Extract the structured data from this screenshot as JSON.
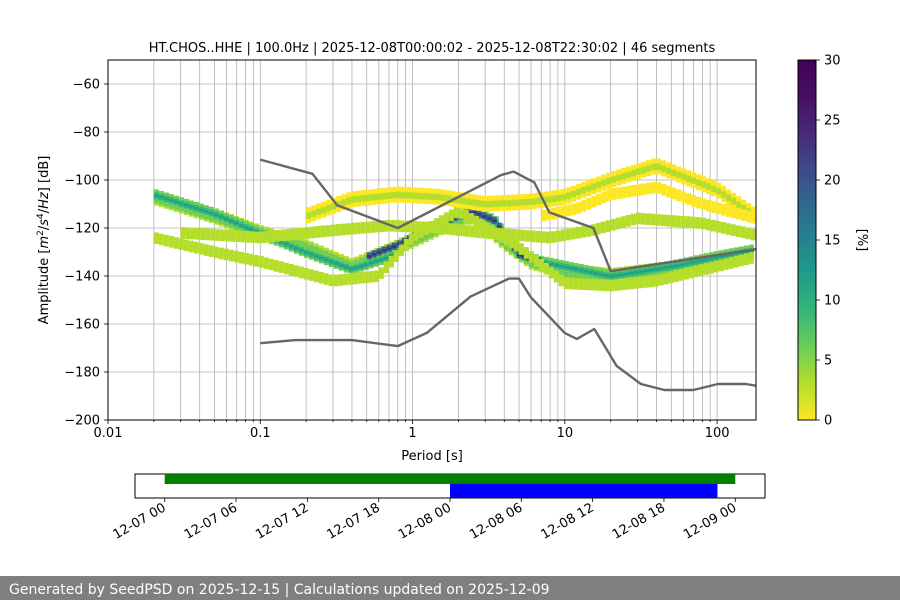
{
  "chart_data": [
    {
      "type": "heatmap",
      "title": "HT.CHOS..HHE | 100.0Hz | 2025-12-08T00:00:02 - 2025-12-08T22:30:02 | 46 segments",
      "xlabel": "Period [s]",
      "ylabel_pre": "Amplitude [",
      "ylabel_math": "m",
      "ylabel_post": " [dB]",
      "x_scale": "log",
      "xlim": [
        0.01,
        180
      ],
      "ylim": [
        -200,
        -50
      ],
      "x_ticks": [
        0.01,
        0.1,
        1,
        10,
        100
      ],
      "x_tick_labels": [
        "0.01",
        "0.1",
        "1",
        "10",
        "100"
      ],
      "y_ticks": [
        -200,
        -180,
        -160,
        -140,
        -120,
        -100,
        -80,
        -60
      ],
      "y_tick_labels": [
        "−200",
        "−180",
        "−160",
        "−140",
        "−120",
        "−100",
        "−80",
        "−60"
      ],
      "grid": true,
      "colorbar": {
        "label": "[%]",
        "range": [
          0,
          30
        ],
        "ticks": [
          0,
          5,
          10,
          15,
          20,
          25,
          30
        ],
        "tick_labels": [
          "0",
          "5",
          "10",
          "15",
          "20",
          "25",
          "30"
        ],
        "colormap": "viridis_r"
      },
      "nhnm": {
        "name": "",
        "color": "#666666",
        "x": [
          0.1,
          0.22,
          0.32,
          0.8,
          3.8,
          4.6,
          6.3,
          7.9,
          15.4,
          20,
          354.8
        ],
        "y": [
          -91.5,
          -97.4,
          -110.5,
          -120,
          -98,
          -96.5,
          -101,
          -113.5,
          -120,
          -138,
          -126
        ]
      },
      "nlnm": {
        "name": "",
        "color": "#666666",
        "x": [
          0.1,
          0.17,
          0.4,
          0.8,
          1.24,
          2.4,
          4.3,
          5,
          6,
          10,
          12,
          15.6,
          21.9,
          31.6,
          45,
          70,
          101,
          154,
          180
        ],
        "y": [
          -168,
          -166.7,
          -166.7,
          -169.2,
          -163.7,
          -148.6,
          -141.1,
          -141.1,
          -149,
          -163.8,
          -166.2,
          -162.1,
          -177.5,
          -185,
          -187.5,
          -187.5,
          -185,
          -185,
          -185.7
        ]
      },
      "density_bands": [
        {
          "name": "",
          "x": [
            0.02,
            0.05,
            0.1,
            0.2,
            0.4,
            0.8,
            1.5,
            2.5,
            4,
            6,
            10,
            20,
            50,
            100,
            180
          ],
          "y": [
            -107,
            -115,
            -122,
            -128,
            -136,
            -128,
            -120,
            -114,
            -126,
            -134,
            -138,
            -140,
            -137,
            -133,
            -130
          ],
          "value": 9,
          "spread": 3
        },
        {
          "name": "",
          "x": [
            0.02,
            0.05,
            0.1,
            0.2,
            0.4,
            0.7,
            1,
            1.6,
            2.5,
            3.5,
            5,
            7,
            10,
            20,
            50,
            100,
            180
          ],
          "y": [
            -106,
            -114,
            -122,
            -130,
            -137,
            -132,
            -125,
            -118,
            -113,
            -117,
            -131,
            -134,
            -136,
            -140,
            -136,
            -132,
            -129
          ],
          "value": 13,
          "spread": 2
        },
        {
          "name": "",
          "x": [
            0.5,
            0.8,
            1.2,
            1.8,
            2.5,
            3.5,
            5,
            7
          ],
          "y": [
            -132,
            -127,
            -121,
            -116,
            -113,
            -117,
            -131,
            -134
          ],
          "value": 28,
          "spread": 1
        },
        {
          "name": "",
          "x": [
            0.02,
            0.05,
            0.1,
            0.3,
            0.6,
            1,
            2,
            5,
            10,
            20,
            40,
            100,
            180
          ],
          "y": [
            -124,
            -130,
            -134,
            -142,
            -140,
            -124,
            -113,
            -128,
            -143,
            -144,
            -142,
            -136,
            -132
          ],
          "value": 4,
          "spread": 2
        },
        {
          "name": "",
          "x": [
            0.2,
            0.4,
            0.8,
            1.5,
            3,
            6,
            10,
            20,
            40,
            100,
            180
          ],
          "y": [
            -115,
            -108,
            -106,
            -107,
            -110,
            -109,
            -107,
            -100,
            -94,
            -104,
            -115
          ],
          "value": 2,
          "spread": 3
        },
        {
          "name": "",
          "x": [
            0.03,
            0.1,
            0.3,
            0.7,
            1.5,
            3,
            8,
            15,
            30,
            80,
            180
          ],
          "y": [
            -122,
            -124,
            -121,
            -119,
            -120,
            -122,
            -124,
            -121,
            -116,
            -118,
            -123
          ],
          "value": 3,
          "spread": 2
        },
        {
          "name": "",
          "x": [
            7,
            12,
            20,
            40,
            80,
            180
          ],
          "y": [
            -115,
            -112,
            -106,
            -103,
            -110,
            -116
          ],
          "value": 1,
          "spread": 2
        }
      ]
    },
    {
      "type": "timeline",
      "x_ticks": [
        "12-07 00",
        "12-07 06",
        "12-07 12",
        "12-07 18",
        "12-08 00",
        "12-08 06",
        "12-08 12",
        "12-08 18",
        "12-09 00"
      ],
      "x_tick_hours": [
        0,
        6,
        12,
        18,
        24,
        30,
        36,
        42,
        48
      ],
      "xlim_hours": [
        -2.5,
        50.5
      ],
      "bars": [
        {
          "name": "",
          "start_hour": 0,
          "end_hour": 48,
          "color": "#008000"
        },
        {
          "name": "",
          "start_hour": 24,
          "end_hour": 46.5,
          "color": "#0000ff"
        }
      ]
    }
  ],
  "footer": {
    "text": "Generated by SeedPSD on 2025-12-15 | Calculations updated on 2025-12-09",
    "background": "#7f7f7f"
  }
}
